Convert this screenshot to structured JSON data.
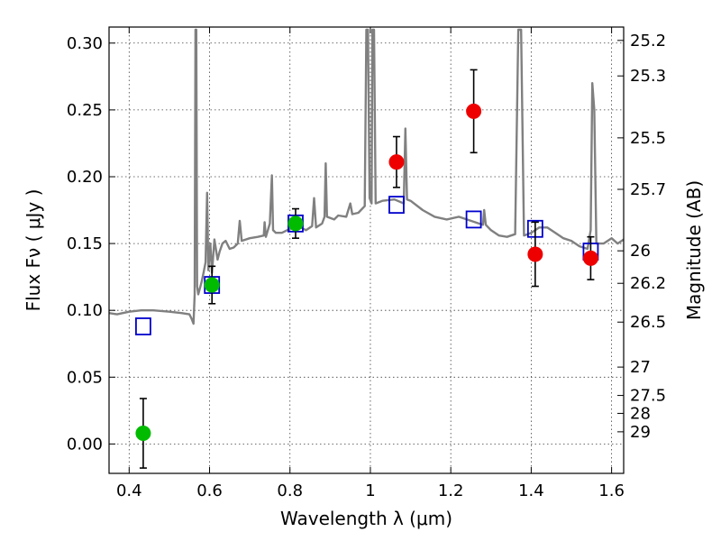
{
  "chart_data": {
    "type": "scatter",
    "xlabel": "Wavelength  λ (μm)",
    "ylabel": "Flux  Fν  ( μJy )",
    "y2label": "Magnitude (AB)",
    "xlim": [
      0.35,
      1.63
    ],
    "ylim": [
      -0.022,
      0.312
    ],
    "grid": true,
    "x_ticks": [
      0.4,
      0.6,
      0.8,
      1.0,
      1.2,
      1.4,
      1.6
    ],
    "x_tick_labels": [
      "0.4",
      "0.6",
      "0.8",
      "1",
      "1.2",
      "1.4",
      "1.6"
    ],
    "y_ticks": [
      0.0,
      0.05,
      0.1,
      0.15,
      0.2,
      0.25,
      0.3
    ],
    "y_tick_labels": [
      "0.00",
      "0.05",
      "0.10",
      "0.15",
      "0.20",
      "0.25",
      "0.30"
    ],
    "y2_ticks": [
      {
        "label": "25.2",
        "mag": 25.2
      },
      {
        "label": "25.3",
        "mag": 25.3
      },
      {
        "label": "25.5",
        "mag": 25.5
      },
      {
        "label": "25.7",
        "mag": 25.7
      },
      {
        "label": "26",
        "mag": 26.0
      },
      {
        "label": "26.2",
        "mag": 26.2
      },
      {
        "label": "26.5",
        "mag": 26.5
      },
      {
        "label": "27",
        "mag": 27.0
      },
      {
        "label": "27.5",
        "mag": 27.5
      },
      {
        "label": "28",
        "mag": 28.0
      },
      {
        "label": "29",
        "mag": 29.0
      }
    ],
    "series": [
      {
        "marker": "circle",
        "color": "#00bb00",
        "points": [
          {
            "x": 0.435,
            "y": 0.008,
            "err": 0.026
          },
          {
            "x": 0.606,
            "y": 0.119,
            "err": 0.014
          },
          {
            "x": 0.814,
            "y": 0.165,
            "err": 0.011
          }
        ]
      },
      {
        "marker": "circle",
        "color": "#ee0000",
        "points": [
          {
            "x": 1.065,
            "y": 0.211,
            "err": 0.019
          },
          {
            "x": 1.257,
            "y": 0.249,
            "err": 0.031
          },
          {
            "x": 1.41,
            "y": 0.142,
            "err": 0.024
          },
          {
            "x": 1.548,
            "y": 0.139,
            "err": 0.016
          }
        ]
      },
      {
        "marker": "square",
        "color": "#0000cc",
        "points": [
          {
            "x": 0.435,
            "y": 0.088
          },
          {
            "x": 0.606,
            "y": 0.119
          },
          {
            "x": 0.814,
            "y": 0.165
          },
          {
            "x": 1.065,
            "y": 0.179
          },
          {
            "x": 1.257,
            "y": 0.168
          },
          {
            "x": 1.41,
            "y": 0.161
          },
          {
            "x": 1.548,
            "y": 0.144
          }
        ]
      },
      {
        "marker": "line",
        "color": "#808080",
        "points": [
          [
            0.35,
            0.098
          ],
          [
            0.37,
            0.097
          ],
          [
            0.4,
            0.099
          ],
          [
            0.43,
            0.1
          ],
          [
            0.46,
            0.1
          ],
          [
            0.5,
            0.099
          ],
          [
            0.53,
            0.098
          ],
          [
            0.55,
            0.097
          ],
          [
            0.555,
            0.094
          ],
          [
            0.56,
            0.09
          ],
          [
            0.563,
            0.112
          ],
          [
            0.565,
            0.31
          ],
          [
            0.567,
            0.31
          ],
          [
            0.569,
            0.118
          ],
          [
            0.572,
            0.112
          ],
          [
            0.58,
            0.121
          ],
          [
            0.585,
            0.128
          ],
          [
            0.59,
            0.136
          ],
          [
            0.594,
            0.188
          ],
          [
            0.597,
            0.13
          ],
          [
            0.602,
            0.15
          ],
          [
            0.606,
            0.128
          ],
          [
            0.612,
            0.153
          ],
          [
            0.62,
            0.138
          ],
          [
            0.625,
            0.144
          ],
          [
            0.632,
            0.15
          ],
          [
            0.64,
            0.152
          ],
          [
            0.65,
            0.146
          ],
          [
            0.66,
            0.147
          ],
          [
            0.67,
            0.15
          ],
          [
            0.675,
            0.167
          ],
          [
            0.68,
            0.152
          ],
          [
            0.7,
            0.154
          ],
          [
            0.72,
            0.155
          ],
          [
            0.735,
            0.156
          ],
          [
            0.737,
            0.166
          ],
          [
            0.74,
            0.155
          ],
          [
            0.75,
            0.165
          ],
          [
            0.755,
            0.201
          ],
          [
            0.758,
            0.16
          ],
          [
            0.765,
            0.158
          ],
          [
            0.78,
            0.158
          ],
          [
            0.8,
            0.161
          ],
          [
            0.82,
            0.163
          ],
          [
            0.84,
            0.16
          ],
          [
            0.855,
            0.163
          ],
          [
            0.86,
            0.184
          ],
          [
            0.865,
            0.162
          ],
          [
            0.87,
            0.163
          ],
          [
            0.88,
            0.165
          ],
          [
            0.886,
            0.17
          ],
          [
            0.889,
            0.21
          ],
          [
            0.892,
            0.17
          ],
          [
            0.91,
            0.168
          ],
          [
            0.92,
            0.171
          ],
          [
            0.94,
            0.17
          ],
          [
            0.95,
            0.18
          ],
          [
            0.955,
            0.172
          ],
          [
            0.97,
            0.173
          ],
          [
            0.986,
            0.178
          ],
          [
            0.99,
            0.31
          ],
          [
            0.994,
            0.31
          ],
          [
            0.998,
            0.184
          ],
          [
            1.003,
            0.18
          ],
          [
            1.005,
            0.31
          ],
          [
            1.009,
            0.31
          ],
          [
            1.013,
            0.18
          ],
          [
            1.03,
            0.182
          ],
          [
            1.06,
            0.183
          ],
          [
            1.083,
            0.18
          ],
          [
            1.087,
            0.236
          ],
          [
            1.091,
            0.183
          ],
          [
            1.1,
            0.182
          ],
          [
            1.13,
            0.175
          ],
          [
            1.16,
            0.17
          ],
          [
            1.19,
            0.168
          ],
          [
            1.22,
            0.17
          ],
          [
            1.25,
            0.167
          ],
          [
            1.27,
            0.165
          ],
          [
            1.28,
            0.164
          ],
          [
            1.283,
            0.175
          ],
          [
            1.287,
            0.164
          ],
          [
            1.3,
            0.16
          ],
          [
            1.32,
            0.156
          ],
          [
            1.34,
            0.155
          ],
          [
            1.36,
            0.157
          ],
          [
            1.368,
            0.31
          ],
          [
            1.375,
            0.31
          ],
          [
            1.382,
            0.156
          ],
          [
            1.4,
            0.158
          ],
          [
            1.42,
            0.162
          ],
          [
            1.44,
            0.162
          ],
          [
            1.46,
            0.158
          ],
          [
            1.48,
            0.154
          ],
          [
            1.5,
            0.152
          ],
          [
            1.52,
            0.148
          ],
          [
            1.54,
            0.146
          ],
          [
            1.548,
            0.16
          ],
          [
            1.552,
            0.27
          ],
          [
            1.557,
            0.25
          ],
          [
            1.562,
            0.15
          ],
          [
            1.58,
            0.15
          ],
          [
            1.6,
            0.154
          ],
          [
            1.615,
            0.15
          ],
          [
            1.63,
            0.153
          ]
        ]
      }
    ]
  }
}
